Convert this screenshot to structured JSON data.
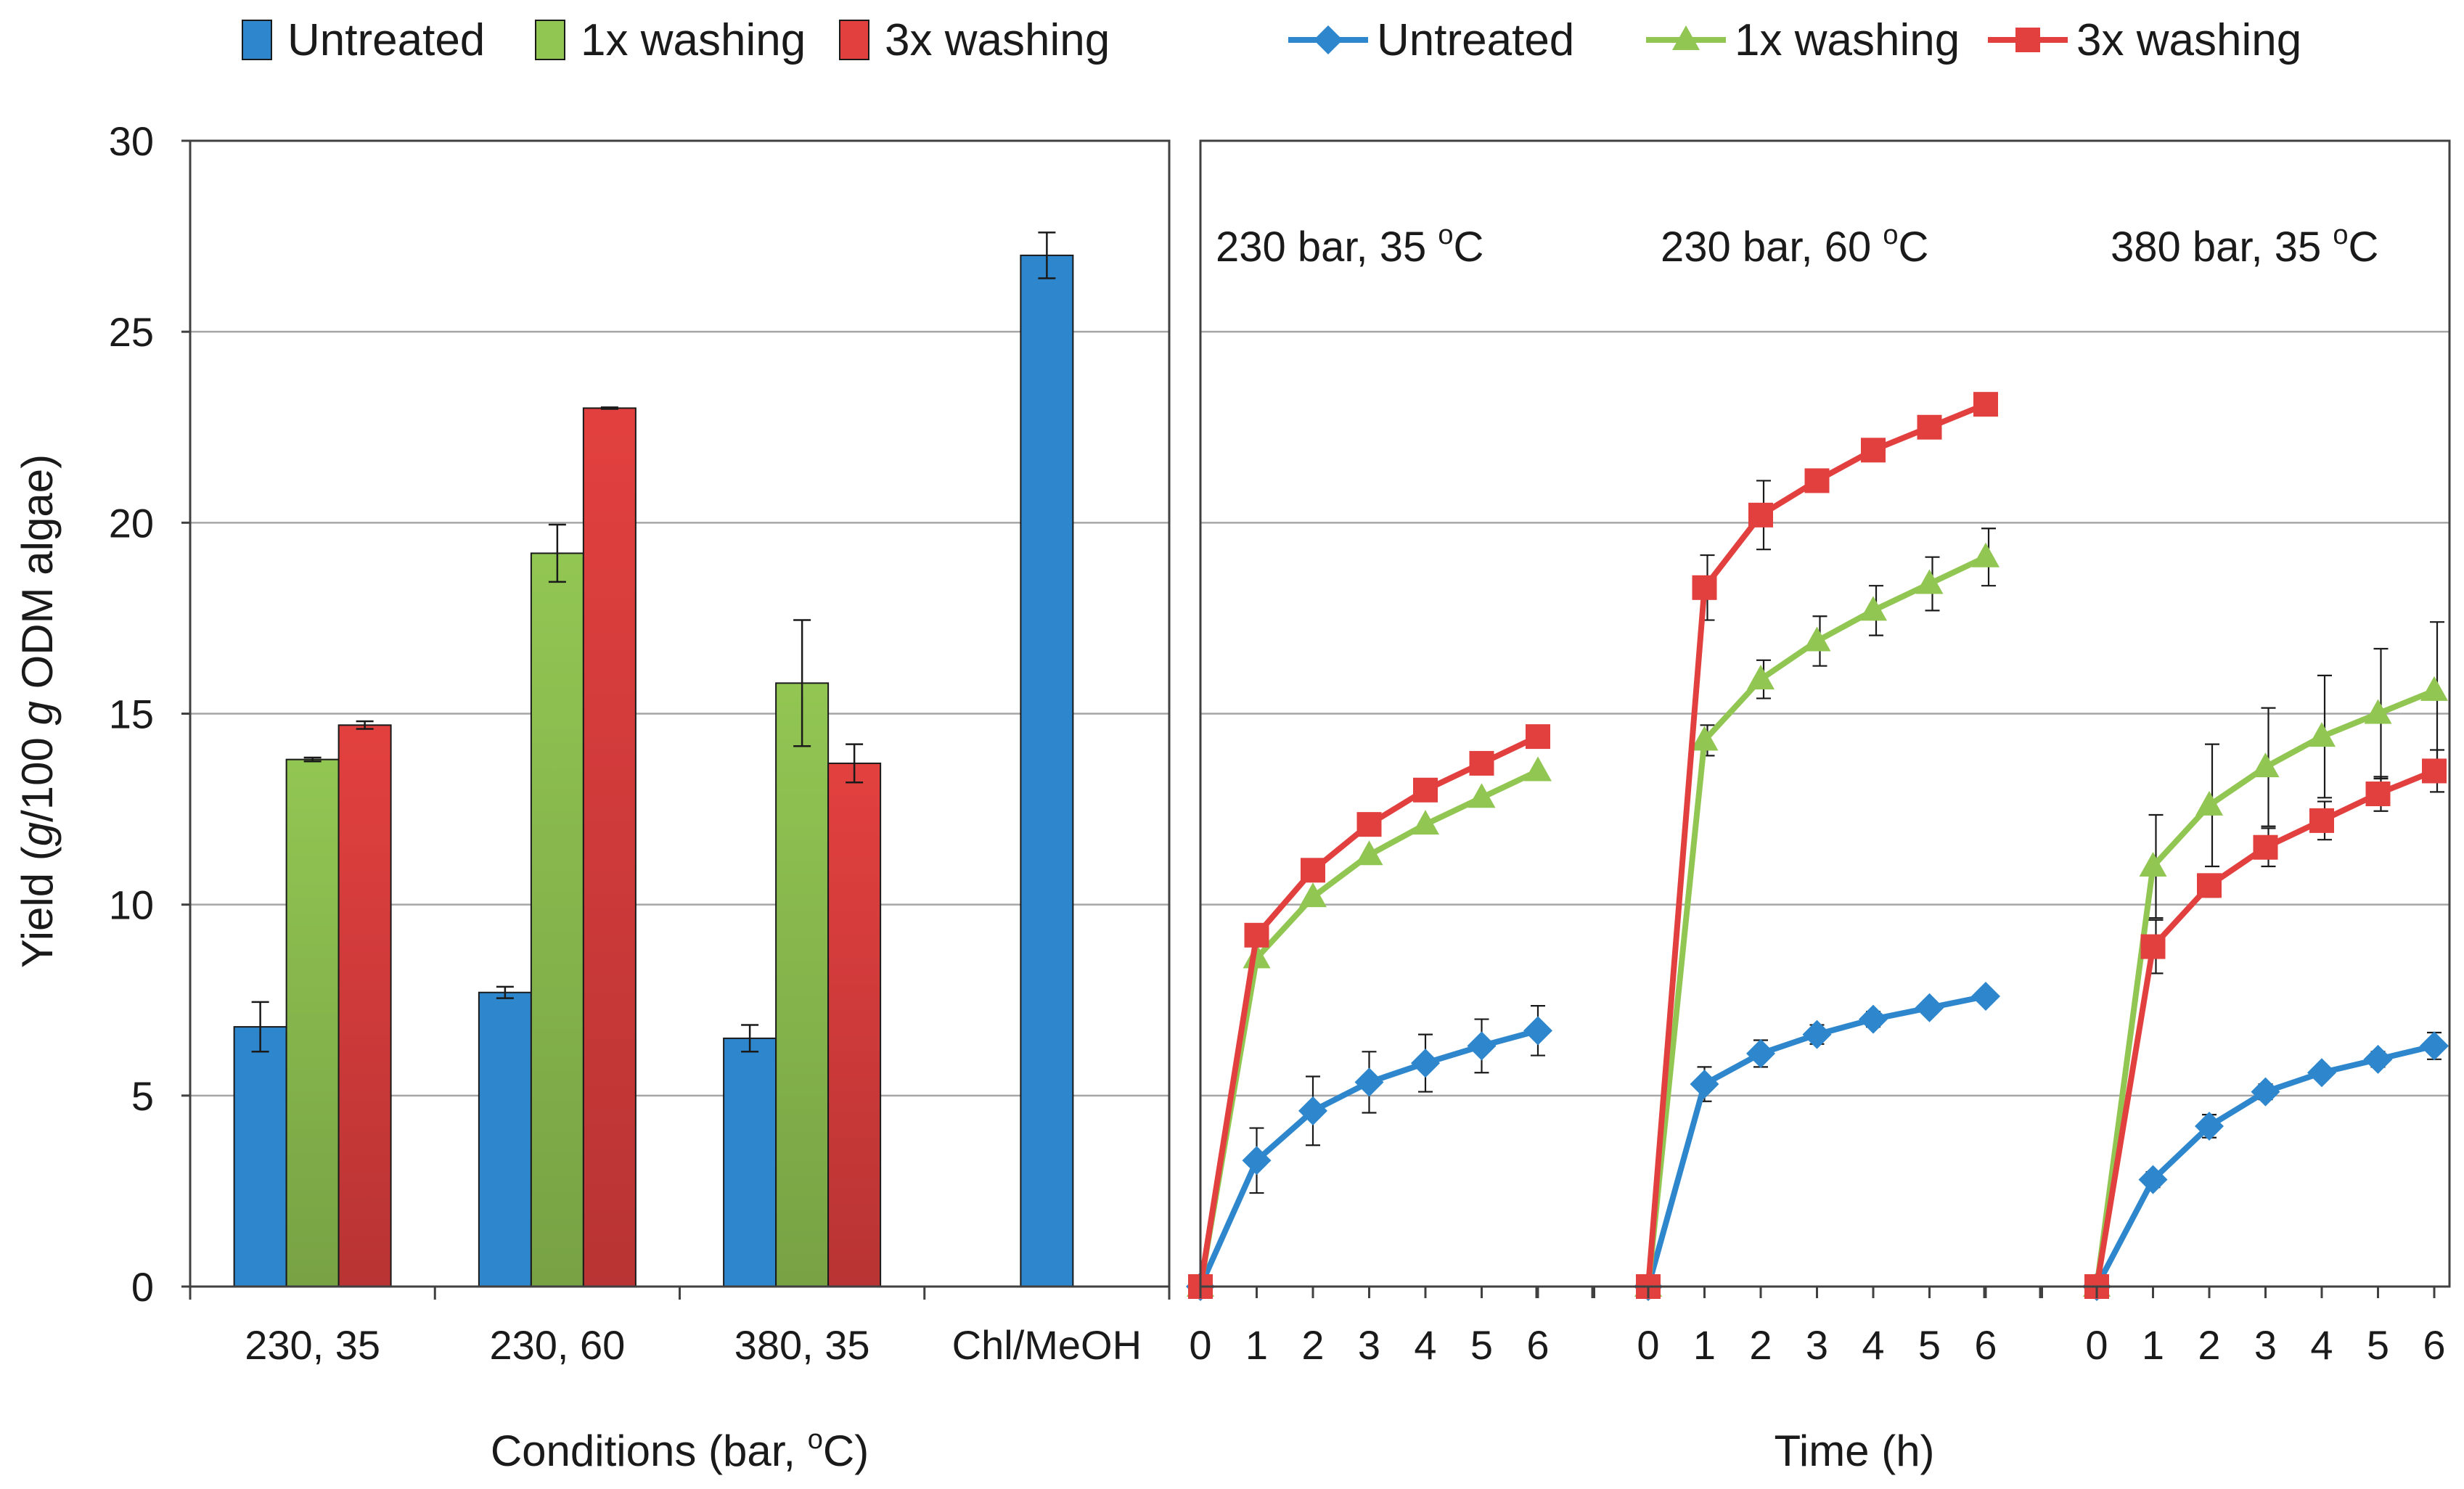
{
  "figure": {
    "y_axis_title": "Yield (g/100 g ODM algae)",
    "y_axis_title_parts": [
      "Yield (",
      "g",
      "/100 ",
      "g",
      " ODM algae)"
    ]
  },
  "colors": {
    "untreated": "#2E87CC",
    "washing1": "#92C653",
    "washing3": "#E2403F",
    "grid": "#A6A6A6",
    "axis": "#404040"
  },
  "legend_bar": [
    {
      "label": "Untreated",
      "key": "untreated"
    },
    {
      "label": "1x washing",
      "key": "washing1"
    },
    {
      "label": "3x washing",
      "key": "washing3"
    }
  ],
  "legend_line": [
    {
      "label": "Untreated",
      "key": "untreated",
      "marker": "diamond"
    },
    {
      "label": "1x washing",
      "key": "washing1",
      "marker": "triangle"
    },
    {
      "label": "3x washing",
      "key": "washing3",
      "marker": "square"
    }
  ],
  "chart_data": [
    {
      "type": "bar",
      "title": "",
      "xlabel_parts": [
        "Conditions  (bar, ",
        "o",
        "C)"
      ],
      "xlabel": "Conditions (bar, oC)",
      "ylabel": "Yield (g/100 g ODM algae)",
      "ylim": [
        0,
        30
      ],
      "yticks": [
        0,
        5,
        10,
        15,
        20,
        25,
        30
      ],
      "grid": true,
      "legend": "top",
      "categories": [
        "230, 35",
        "230, 60",
        "380, 35",
        "Chl/MeOH"
      ],
      "series": [
        {
          "name": "Untreated",
          "key": "untreated",
          "values": [
            6.8,
            7.7,
            6.5,
            27.0
          ],
          "errors": [
            0.65,
            0.15,
            0.35,
            0.6
          ]
        },
        {
          "name": "1x washing",
          "key": "washing1",
          "values": [
            13.8,
            19.2,
            15.8,
            null
          ],
          "errors": [
            0.05,
            0.75,
            1.65,
            null
          ]
        },
        {
          "name": "3x washing",
          "key": "washing3",
          "values": [
            14.7,
            23.0,
            13.7,
            null
          ],
          "errors": [
            0.1,
            0.02,
            0.5,
            null
          ]
        }
      ]
    },
    {
      "type": "line",
      "title": "",
      "xlabel": "Time (h)",
      "ylim": [
        0,
        30
      ],
      "grid": true,
      "legend": "top",
      "x": [
        0,
        1,
        2,
        3,
        4,
        5,
        6
      ],
      "panels": [
        {
          "label": "230 bar, 35 oC",
          "label_parts": [
            "230 bar, 35 ",
            "o",
            "C"
          ],
          "series": [
            {
              "name": "Untreated",
              "key": "untreated",
              "marker": "diamond",
              "values": [
                0,
                3.3,
                4.6,
                5.35,
                5.85,
                6.3,
                6.7
              ],
              "errors": [
                0,
                0.85,
                0.9,
                0.8,
                0.75,
                0.7,
                0.65
              ]
            },
            {
              "name": "1x washing",
              "key": "washing1",
              "marker": "triangle",
              "values": [
                0,
                8.6,
                10.2,
                11.3,
                12.1,
                12.8,
                13.5
              ],
              "errors": [
                0,
                0,
                0,
                0,
                0,
                0,
                0
              ]
            },
            {
              "name": "3x washing",
              "key": "washing3",
              "marker": "square",
              "values": [
                0,
                9.2,
                10.9,
                12.1,
                13.0,
                13.7,
                14.4
              ],
              "errors": [
                0,
                0,
                0,
                0,
                0,
                0,
                0
              ]
            }
          ]
        },
        {
          "label": "230 bar, 60 oC",
          "label_parts": [
            "230 bar, 60 ",
            "o",
            "C"
          ],
          "series": [
            {
              "name": "Untreated",
              "key": "untreated",
              "marker": "diamond",
              "values": [
                0,
                5.3,
                6.1,
                6.6,
                7.0,
                7.3,
                7.6
              ],
              "errors": [
                0,
                0.45,
                0.35,
                0.25,
                0.2,
                0.15,
                0.1
              ]
            },
            {
              "name": "1x washing",
              "key": "washing1",
              "marker": "triangle",
              "values": [
                0,
                14.3,
                15.9,
                16.9,
                17.7,
                18.4,
                19.1
              ],
              "errors": [
                0,
                0.4,
                0.5,
                0.65,
                0.65,
                0.7,
                0.75
              ]
            },
            {
              "name": "3x washing",
              "key": "washing3",
              "marker": "square",
              "values": [
                0,
                18.3,
                20.2,
                21.1,
                21.9,
                22.5,
                23.1
              ],
              "errors": [
                0,
                0.85,
                0.9,
                0,
                0,
                0,
                0
              ]
            }
          ]
        },
        {
          "label": "380 bar, 35 oC",
          "label_parts": [
            "380 bar, 35 ",
            "o",
            "C"
          ],
          "series": [
            {
              "name": "Untreated",
              "key": "untreated",
              "marker": "diamond",
              "values": [
                0,
                2.8,
                4.2,
                5.1,
                5.6,
                5.95,
                6.3
              ],
              "errors": [
                0,
                0.2,
                0.3,
                0.2,
                0.15,
                0.2,
                0.35
              ]
            },
            {
              "name": "1x washing",
              "key": "washing1",
              "marker": "triangle",
              "values": [
                0,
                11.0,
                12.6,
                13.6,
                14.4,
                15.0,
                15.6
              ],
              "errors": [
                0,
                1.35,
                1.6,
                1.55,
                1.6,
                1.7,
                1.8
              ]
            },
            {
              "name": "3x washing",
              "key": "washing3",
              "marker": "square",
              "values": [
                0,
                8.9,
                10.5,
                11.5,
                12.2,
                12.9,
                13.5
              ],
              "errors": [
                0,
                0.7,
                0.3,
                0.5,
                0.5,
                0.45,
                0.55
              ]
            }
          ]
        }
      ]
    }
  ]
}
